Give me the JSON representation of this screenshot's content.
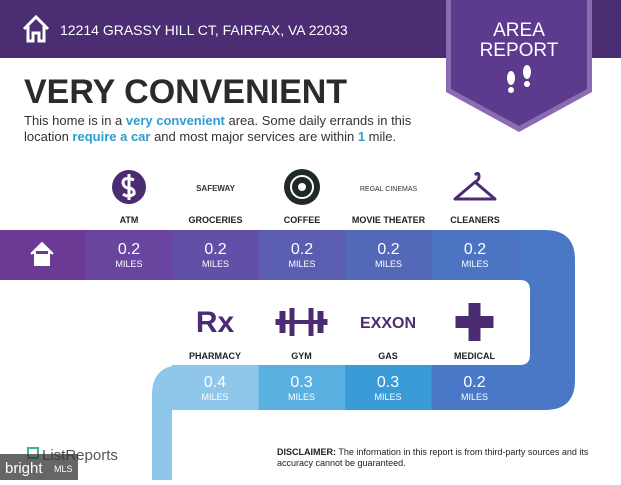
{
  "header": {
    "address": "12214 GRASSY HILL CT, FAIRFAX, VA 22033"
  },
  "badge": {
    "line1": "AREA",
    "line2": "REPORT"
  },
  "heading": "VERY CONVENIENT",
  "description": {
    "lines": [
      [
        {
          "text": "This home is in a ",
          "highlight": false
        },
        {
          "text": "very convenient",
          "highlight": true
        },
        {
          "text": " area. Some daily errands in this",
          "highlight": false
        }
      ],
      [
        {
          "text": "location ",
          "highlight": false
        },
        {
          "text": "require a car",
          "highlight": true
        },
        {
          "text": " and most major services are within ",
          "highlight": false
        },
        {
          "text": "1",
          "highlight": true
        },
        {
          "text": " mile.",
          "highlight": false
        }
      ]
    ]
  },
  "amenities": {
    "rows": [
      [
        {
          "label": "ATM",
          "distance": 0.2,
          "unit": "MILES"
        },
        {
          "label": "GROCERIES",
          "logo": "SAFEWAY",
          "distance": 0.2,
          "unit": "MILES"
        },
        {
          "label": "COFFEE",
          "distance": 0.2,
          "unit": "MILES"
        },
        {
          "label": "MOVIE THEATER",
          "logo": "REGAL CINEMAS",
          "distance": 0.2,
          "unit": "MILES"
        },
        {
          "label": "CLEANERS",
          "distance": 0.2,
          "unit": "MILES"
        }
      ],
      [
        {
          "label": "PHARMACY",
          "logo": "Rx",
          "distance": 0.4,
          "unit": "MILES"
        },
        {
          "label": "GYM",
          "distance": 0.3,
          "unit": "MILES"
        },
        {
          "label": "GAS",
          "logo": "EXXON",
          "distance": 0.3,
          "unit": "MILES"
        },
        {
          "label": "MEDICAL",
          "distance": 0.2,
          "unit": "MILES"
        }
      ]
    ]
  },
  "footer": {
    "brand": "ListReports",
    "watermark": "bright",
    "watermark_sub": "MLS",
    "disclaimer_label": "DISCLAIMER:",
    "disclaimer_line1": " The information in this report is from third-party sources and its",
    "disclaimer_line2": "accuracy cannot be guaranteed."
  }
}
